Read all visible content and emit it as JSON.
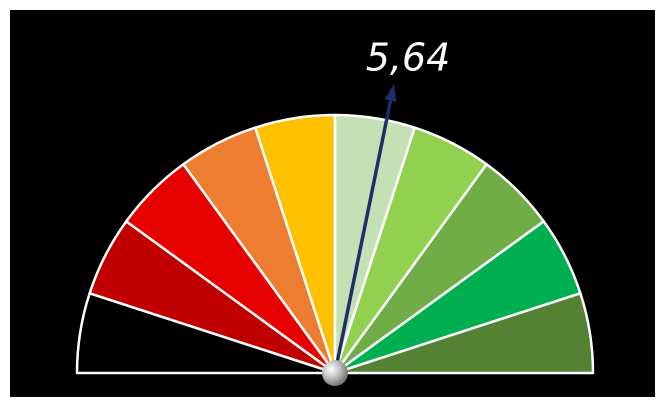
{
  "chart_data": {
    "type": "gauge",
    "values": [
      5.64
    ],
    "value_labels": [
      "5,64"
    ],
    "ylim": [
      0,
      10
    ],
    "colors": [
      "#000000",
      "#c00000",
      "#e60000",
      "#ed7d31",
      "#ffc000",
      "#c5e0b4",
      "#92d050",
      "#70ad47",
      "#00b050",
      "#548235"
    ],
    "needle_color": "#1f2d6b"
  }
}
